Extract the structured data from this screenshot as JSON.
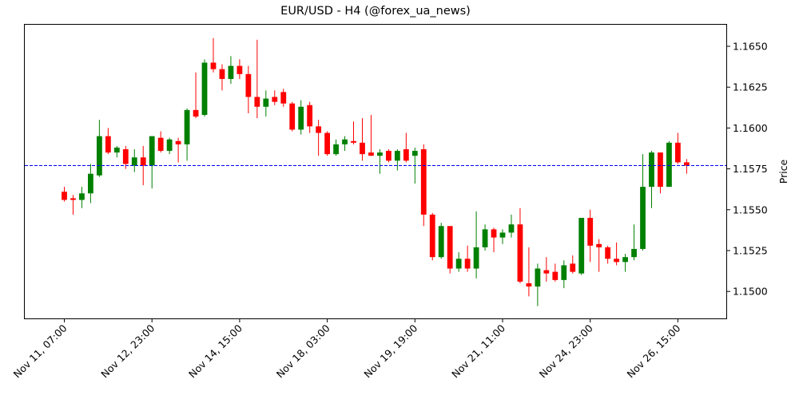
{
  "chart_data": {
    "type": "candlestick",
    "title": "EUR/USD - H4 (@forex_ua_news)",
    "xlabel": "",
    "ylabel": "Price",
    "y_axis_side": "right",
    "ylim": [
      1.1484,
      1.1662
    ],
    "yticks": [
      "1.1500",
      "1.1525",
      "1.1550",
      "1.1575",
      "1.1600",
      "1.1625",
      "1.1650"
    ],
    "xtick_labels": [
      "Nov 11, 07:00",
      "Nov 12, 23:00",
      "Nov 14, 15:00",
      "Nov 18, 03:00",
      "Nov 19, 19:00",
      "Nov 21, 11:00",
      "Nov 24, 23:00",
      "Nov 26, 15:00"
    ],
    "xtick_indices": [
      0,
      10,
      20,
      30,
      40,
      50,
      60,
      70
    ],
    "reference_line": {
      "price": 1.1577,
      "color": "#0000ff",
      "style": "dashed"
    },
    "colors": {
      "up": "#008000",
      "down": "#ff0000"
    },
    "candles": [
      {
        "o": 1.1561,
        "h": 1.1564,
        "l": 1.1555,
        "c": 1.1556
      },
      {
        "o": 1.1557,
        "h": 1.1559,
        "l": 1.1547,
        "c": 1.1556
      },
      {
        "o": 1.1556,
        "h": 1.1564,
        "l": 1.1551,
        "c": 1.156
      },
      {
        "o": 1.156,
        "h": 1.1578,
        "l": 1.1554,
        "c": 1.1572
      },
      {
        "o": 1.1571,
        "h": 1.1605,
        "l": 1.157,
        "c": 1.1595
      },
      {
        "o": 1.1595,
        "h": 1.16,
        "l": 1.1584,
        "c": 1.1585
      },
      {
        "o": 1.1585,
        "h": 1.1589,
        "l": 1.1582,
        "c": 1.1588
      },
      {
        "o": 1.1587,
        "h": 1.1589,
        "l": 1.1575,
        "c": 1.1578
      },
      {
        "o": 1.1577,
        "h": 1.1587,
        "l": 1.1573,
        "c": 1.1582
      },
      {
        "o": 1.1582,
        "h": 1.1589,
        "l": 1.1565,
        "c": 1.1577
      },
      {
        "o": 1.1577,
        "h": 1.1595,
        "l": 1.1563,
        "c": 1.1595
      },
      {
        "o": 1.1594,
        "h": 1.1598,
        "l": 1.1585,
        "c": 1.1586
      },
      {
        "o": 1.1586,
        "h": 1.1594,
        "l": 1.1584,
        "c": 1.1593
      },
      {
        "o": 1.1592,
        "h": 1.1594,
        "l": 1.1579,
        "c": 1.159
      },
      {
        "o": 1.159,
        "h": 1.1612,
        "l": 1.158,
        "c": 1.1611
      },
      {
        "o": 1.1611,
        "h": 1.1634,
        "l": 1.1606,
        "c": 1.1607
      },
      {
        "o": 1.1608,
        "h": 1.1642,
        "l": 1.1607,
        "c": 1.164
      },
      {
        "o": 1.164,
        "h": 1.1655,
        "l": 1.1634,
        "c": 1.1636
      },
      {
        "o": 1.1636,
        "h": 1.1639,
        "l": 1.1623,
        "c": 1.163
      },
      {
        "o": 1.163,
        "h": 1.1644,
        "l": 1.1627,
        "c": 1.1638
      },
      {
        "o": 1.1638,
        "h": 1.1642,
        "l": 1.163,
        "c": 1.1633
      },
      {
        "o": 1.1633,
        "h": 1.1638,
        "l": 1.1609,
        "c": 1.1619
      },
      {
        "o": 1.1619,
        "h": 1.1654,
        "l": 1.1606,
        "c": 1.1613
      },
      {
        "o": 1.1613,
        "h": 1.1623,
        "l": 1.1607,
        "c": 1.1618
      },
      {
        "o": 1.1619,
        "h": 1.1623,
        "l": 1.1614,
        "c": 1.1616
      },
      {
        "o": 1.1622,
        "h": 1.1624,
        "l": 1.1613,
        "c": 1.1615
      },
      {
        "o": 1.1615,
        "h": 1.1616,
        "l": 1.1598,
        "c": 1.1599
      },
      {
        "o": 1.1599,
        "h": 1.1617,
        "l": 1.1596,
        "c": 1.1613
      },
      {
        "o": 1.1614,
        "h": 1.1616,
        "l": 1.1597,
        "c": 1.1601
      },
      {
        "o": 1.1601,
        "h": 1.1605,
        "l": 1.1583,
        "c": 1.1597
      },
      {
        "o": 1.1597,
        "h": 1.1598,
        "l": 1.1583,
        "c": 1.1584
      },
      {
        "o": 1.1584,
        "h": 1.1593,
        "l": 1.1583,
        "c": 1.159
      },
      {
        "o": 1.159,
        "h": 1.1595,
        "l": 1.1586,
        "c": 1.1593
      },
      {
        "o": 1.1592,
        "h": 1.1604,
        "l": 1.159,
        "c": 1.1591
      },
      {
        "o": 1.1591,
        "h": 1.1606,
        "l": 1.158,
        "c": 1.1584
      },
      {
        "o": 1.1585,
        "h": 1.1608,
        "l": 1.1583,
        "c": 1.1583
      },
      {
        "o": 1.1583,
        "h": 1.1587,
        "l": 1.1572,
        "c": 1.1585
      },
      {
        "o": 1.1586,
        "h": 1.1587,
        "l": 1.1579,
        "c": 1.158
      },
      {
        "o": 1.158,
        "h": 1.1587,
        "l": 1.1574,
        "c": 1.1586
      },
      {
        "o": 1.1587,
        "h": 1.1597,
        "l": 1.1579,
        "c": 1.158
      },
      {
        "o": 1.1583,
        "h": 1.1588,
        "l": 1.1566,
        "c": 1.1586
      },
      {
        "o": 1.1587,
        "h": 1.159,
        "l": 1.154,
        "c": 1.1547
      },
      {
        "o": 1.1547,
        "h": 1.1548,
        "l": 1.1519,
        "c": 1.1521
      },
      {
        "o": 1.1521,
        "h": 1.1542,
        "l": 1.152,
        "c": 1.154
      },
      {
        "o": 1.154,
        "h": 1.154,
        "l": 1.1511,
        "c": 1.1514
      },
      {
        "o": 1.1514,
        "h": 1.1524,
        "l": 1.1512,
        "c": 1.152
      },
      {
        "o": 1.152,
        "h": 1.1528,
        "l": 1.1512,
        "c": 1.1514
      },
      {
        "o": 1.1514,
        "h": 1.1549,
        "l": 1.1508,
        "c": 1.1527
      },
      {
        "o": 1.1527,
        "h": 1.1541,
        "l": 1.1525,
        "c": 1.1538
      },
      {
        "o": 1.1538,
        "h": 1.1539,
        "l": 1.1524,
        "c": 1.1533
      },
      {
        "o": 1.1533,
        "h": 1.1538,
        "l": 1.1529,
        "c": 1.1536
      },
      {
        "o": 1.1536,
        "h": 1.1547,
        "l": 1.1533,
        "c": 1.1541
      },
      {
        "o": 1.1541,
        "h": 1.1551,
        "l": 1.1505,
        "c": 1.1506
      },
      {
        "o": 1.1505,
        "h": 1.1527,
        "l": 1.1497,
        "c": 1.1503
      },
      {
        "o": 1.1503,
        "h": 1.1517,
        "l": 1.1491,
        "c": 1.1514
      },
      {
        "o": 1.1513,
        "h": 1.1521,
        "l": 1.1506,
        "c": 1.1511
      },
      {
        "o": 1.1512,
        "h": 1.1517,
        "l": 1.1506,
        "c": 1.1507
      },
      {
        "o": 1.1507,
        "h": 1.1519,
        "l": 1.1502,
        "c": 1.1516
      },
      {
        "o": 1.1517,
        "h": 1.1522,
        "l": 1.1511,
        "c": 1.1512
      },
      {
        "o": 1.1511,
        "h": 1.1545,
        "l": 1.151,
        "c": 1.1545
      },
      {
        "o": 1.1545,
        "h": 1.155,
        "l": 1.1518,
        "c": 1.1528
      },
      {
        "o": 1.1529,
        "h": 1.1532,
        "l": 1.1512,
        "c": 1.1527
      },
      {
        "o": 1.1527,
        "h": 1.1528,
        "l": 1.1517,
        "c": 1.152
      },
      {
        "o": 1.152,
        "h": 1.153,
        "l": 1.1516,
        "c": 1.1518
      },
      {
        "o": 1.1518,
        "h": 1.1523,
        "l": 1.1512,
        "c": 1.1521
      },
      {
        "o": 1.1521,
        "h": 1.1541,
        "l": 1.1519,
        "c": 1.1526
      },
      {
        "o": 1.1526,
        "h": 1.1584,
        "l": 1.1525,
        "c": 1.1564
      },
      {
        "o": 1.1564,
        "h": 1.1586,
        "l": 1.1551,
        "c": 1.1585
      },
      {
        "o": 1.1585,
        "h": 1.1585,
        "l": 1.156,
        "c": 1.1564
      },
      {
        "o": 1.1564,
        "h": 1.1592,
        "l": 1.1564,
        "c": 1.1591
      },
      {
        "o": 1.1591,
        "h": 1.1597,
        "l": 1.1578,
        "c": 1.1579
      },
      {
        "o": 1.1579,
        "h": 1.1581,
        "l": 1.1572,
        "c": 1.1577
      }
    ]
  }
}
